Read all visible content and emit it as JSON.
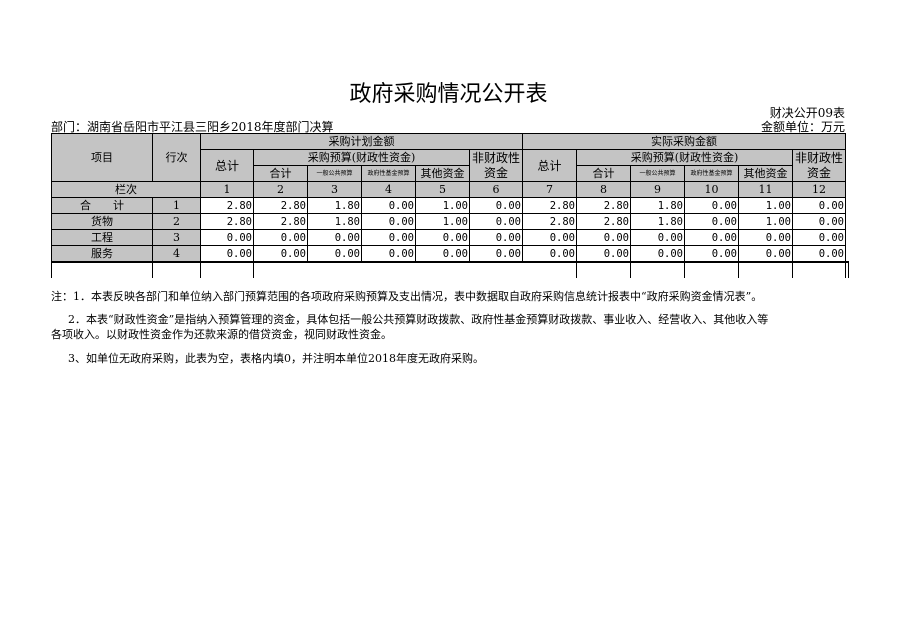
{
  "title": "政府采购情况公开表",
  "form_code": "财决公开09表",
  "unit": "金额单位：万元",
  "department": "部门：湖南省岳阳市平江县三阳乡2018年度部门决算",
  "headers": {
    "item": "项目",
    "row_no": "行次",
    "planned": "采购计划金额",
    "actual": "实际采购金额",
    "total": "总计",
    "budget": "采购预算(财政性资金)",
    "non_fiscal": "非财政性资金",
    "subtotal": "合计",
    "general": "一般公共预算",
    "gov_fund": "政府性基金预算",
    "other": "其他资金",
    "column_label": "栏次",
    "col_nums": [
      "1",
      "2",
      "3",
      "4",
      "5",
      "6",
      "7",
      "8",
      "9",
      "10",
      "11",
      "12"
    ]
  },
  "rows": [
    {
      "item": "合　　计",
      "no": "1",
      "values": [
        "2.80",
        "2.80",
        "1.80",
        "0.00",
        "1.00",
        "0.00",
        "2.80",
        "2.80",
        "1.80",
        "0.00",
        "1.00",
        "0.00"
      ]
    },
    {
      "item": "货物",
      "no": "2",
      "values": [
        "2.80",
        "2.80",
        "1.80",
        "0.00",
        "1.00",
        "0.00",
        "2.80",
        "2.80",
        "1.80",
        "0.00",
        "1.00",
        "0.00"
      ]
    },
    {
      "item": "工程",
      "no": "3",
      "values": [
        "0.00",
        "0.00",
        "0.00",
        "0.00",
        "0.00",
        "0.00",
        "0.00",
        "0.00",
        "0.00",
        "0.00",
        "0.00",
        "0.00"
      ]
    },
    {
      "item": "服务",
      "no": "4",
      "values": [
        "0.00",
        "0.00",
        "0.00",
        "0.00",
        "0.00",
        "0.00",
        "0.00",
        "0.00",
        "0.00",
        "0.00",
        "0.00",
        "0.00"
      ]
    }
  ],
  "notes": [
    "注：1．本表反映各部门和单位纳入部门预算范围的各项政府采购预算及支出情况，表中数据取自政府采购信息统计报表中“政府采购资金情况表”。",
    "2．本表“财政性资金”是指纳入预算管理的资金，具体包括一般公共预算财政拨款、政府性基金预算财政拨款、事业收入、经营收入、其他收入等",
    "各项收入。以财政性资金作为还款来源的借贷资金，视同财政性资金。",
    "3、如单位无政府采购，此表为空，表格内填0，并注明本单位2018年度无政府采购。"
  ]
}
